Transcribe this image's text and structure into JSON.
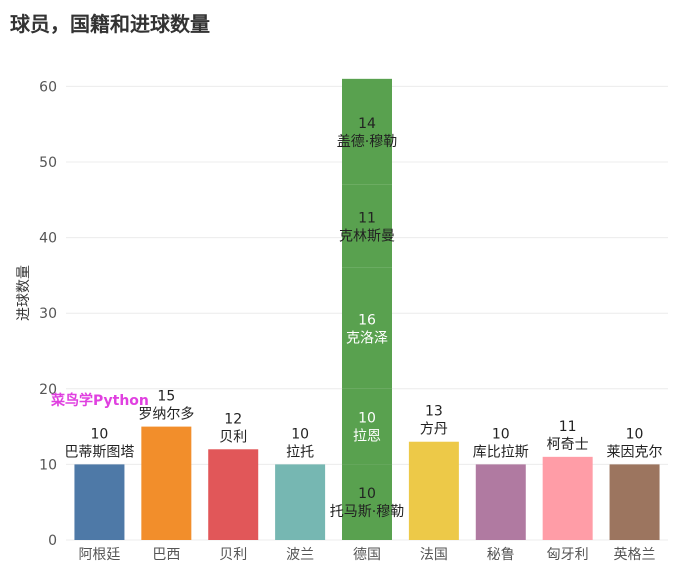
{
  "chart_data": {
    "type": "bar",
    "title": "球员，国籍和进球数量",
    "xlabel": "",
    "ylabel": "进球数量",
    "ylim": [
      0,
      65
    ],
    "yticks": [
      0,
      10,
      20,
      30,
      40,
      50,
      60
    ],
    "categories": [
      "阿根廷",
      "巴西",
      "贝利",
      "波兰",
      "德国",
      "法国",
      "秘鲁",
      "匈牙利",
      "英格兰"
    ],
    "colors": [
      "#4e79a7",
      "#f28e2b",
      "#e15759",
      "#76b7b2",
      "#59a14f",
      "#edc948",
      "#b07aa1",
      "#ff9da7",
      "#9c755f"
    ],
    "segments": [
      {
        "category": "阿根廷",
        "player": "巴蒂斯图塔",
        "value": 10
      },
      {
        "category": "巴西",
        "player": "罗纳尔多",
        "value": 15
      },
      {
        "category": "贝利",
        "player": "贝利",
        "value": 12
      },
      {
        "category": "波兰",
        "player": "拉托",
        "value": 10
      },
      {
        "category": "德国",
        "player": "托马斯·穆勒",
        "value": 10
      },
      {
        "category": "德国",
        "player": "拉恩",
        "value": 10
      },
      {
        "category": "德国",
        "player": "克洛泽",
        "value": 16
      },
      {
        "category": "德国",
        "player": "克林斯曼",
        "value": 11
      },
      {
        "category": "德国",
        "player": "盖德·穆勒",
        "value": 14
      },
      {
        "category": "法国",
        "player": "方丹",
        "value": 13
      },
      {
        "category": "秘鲁",
        "player": "库比拉斯",
        "value": 10
      },
      {
        "category": "匈牙利",
        "player": "柯奇士",
        "value": 11
      },
      {
        "category": "英格兰",
        "player": "莱因克尔",
        "value": 10
      }
    ],
    "grid": true,
    "legend": "none"
  },
  "watermark": "菜鸟学Python"
}
